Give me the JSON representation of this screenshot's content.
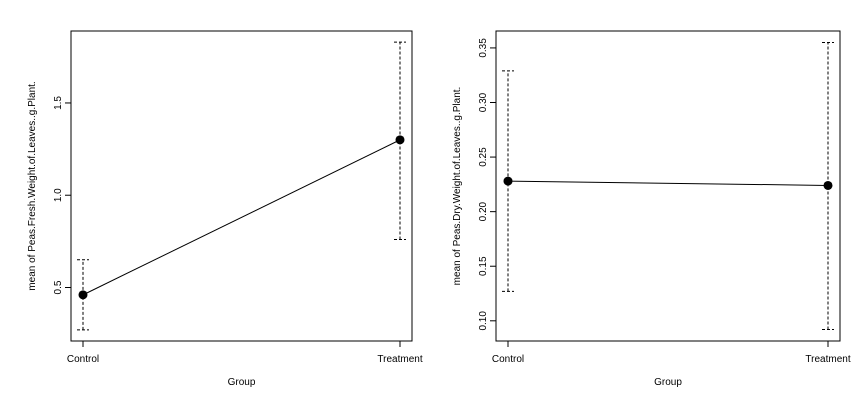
{
  "chart_data": [
    {
      "type": "line",
      "title": "",
      "xlabel": "Group",
      "ylabel": "mean of Peas.Fresh.Weight.of.Leaves..g.Plant.",
      "categories": [
        "Control",
        "Treatment"
      ],
      "values": [
        0.46,
        1.3
      ],
      "error_low": [
        0.27,
        0.76
      ],
      "error_high": [
        0.65,
        1.83
      ],
      "ylim": [
        0.21,
        1.89
      ],
      "yticks": [
        0.5,
        1.0,
        1.5
      ],
      "ytick_labels": [
        "0.5",
        "1.0",
        "1.5"
      ],
      "grid": false,
      "legend": "none",
      "error_bar_style": "dashed"
    },
    {
      "type": "line",
      "title": "",
      "xlabel": "Group",
      "ylabel": "mean of Peas.Dry.Weight.of.Leaves..g.Plant.",
      "categories": [
        "Control",
        "Treatment"
      ],
      "values": [
        0.228,
        0.224
      ],
      "error_low": [
        0.127,
        0.092
      ],
      "error_high": [
        0.329,
        0.355
      ],
      "ylim": [
        0.0815,
        0.3655
      ],
      "yticks": [
        0.1,
        0.15,
        0.2,
        0.25,
        0.3,
        0.35
      ],
      "ytick_labels": [
        "0.10",
        "0.15",
        "0.20",
        "0.25",
        "0.30",
        "0.35"
      ],
      "grid": false,
      "legend": "none",
      "error_bar_style": "dashed"
    }
  ]
}
